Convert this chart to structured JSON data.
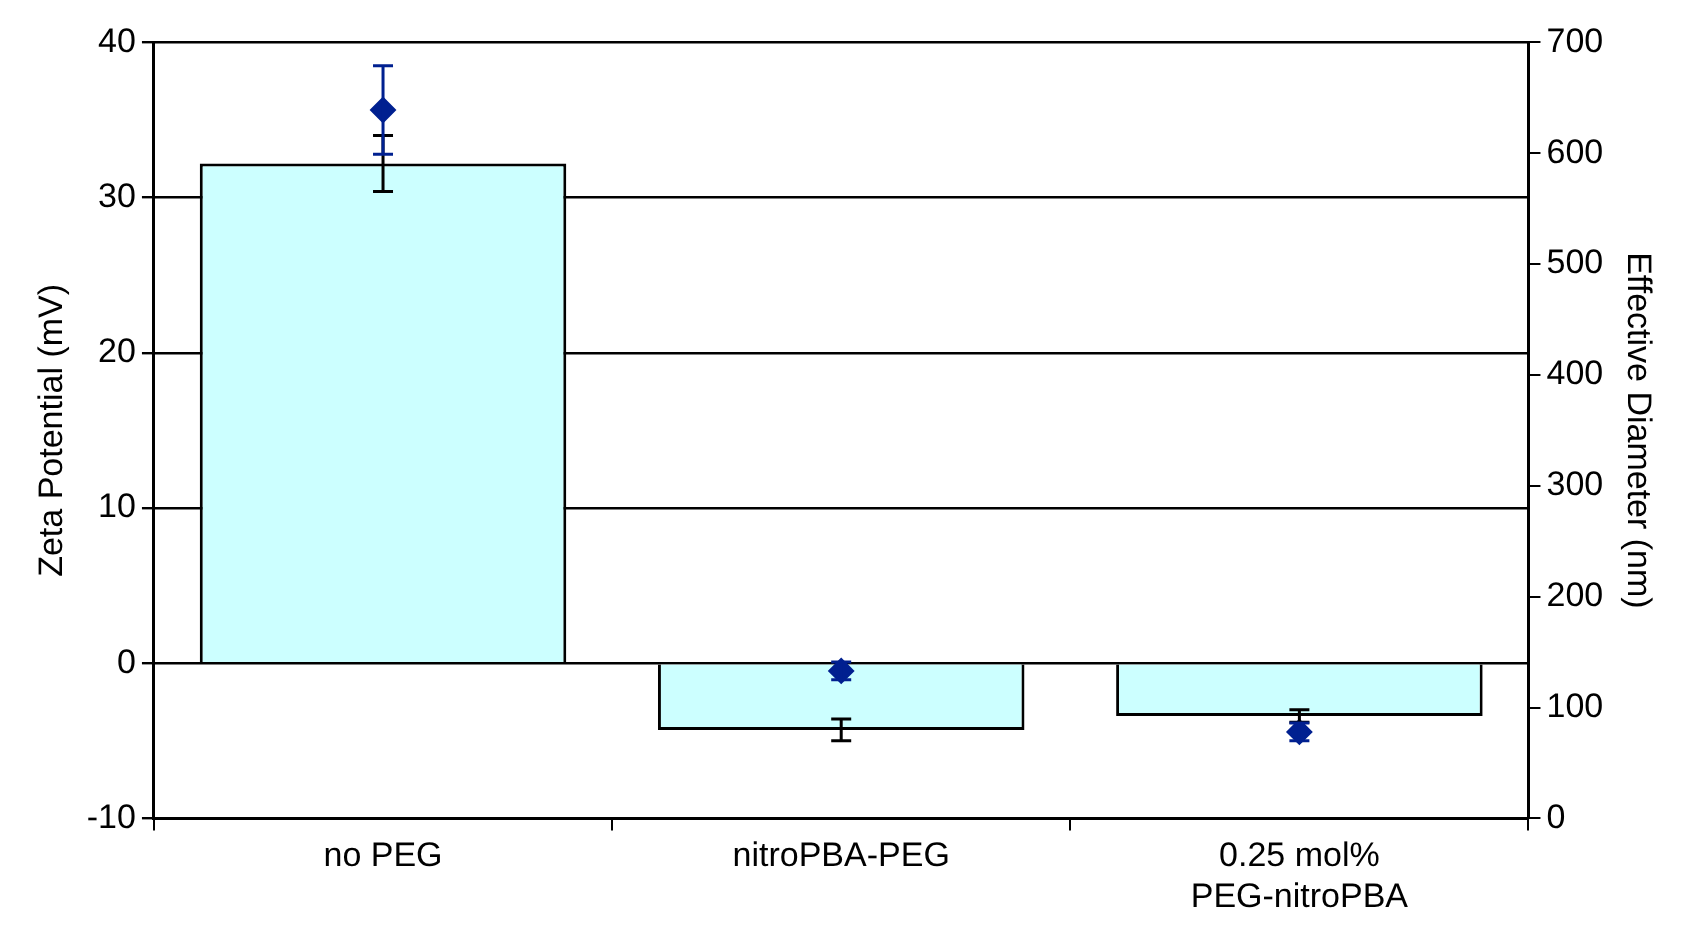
{
  "chart_data": {
    "type": "bar",
    "ylabel": "Zeta Potential (mV)",
    "y2label": "Effective Diameter (nm)",
    "categories": [
      "no PEG",
      "nitroPBA-PEG",
      "0.25 mol% PEG-nitroPBA"
    ],
    "series": [
      {
        "color": "#ccffff",
        "values": [
          32.2,
          -4.3,
          -3.4
        ],
        "errors": [
          1.8,
          0.7,
          0.4
        ]
      },
      {
        "type": "scatter",
        "axis": "y2",
        "color": "#002090",
        "marker": "diamond",
        "x": [
          "no PEG",
          "nitroPBA-PEG",
          "0.25 mol% PEG-nitroPBA"
        ],
        "values": [
          639,
          133,
          78
        ],
        "errors": [
          40,
          8,
          8
        ]
      }
    ],
    "ylim": [
      -10,
      40
    ],
    "yticks": [
      -10,
      0,
      10,
      20,
      30,
      40
    ],
    "y2lim": [
      0,
      700
    ],
    "y2ticks": [
      0,
      100,
      200,
      300,
      400,
      500,
      600,
      700
    ],
    "grid": "y",
    "legend": false
  }
}
